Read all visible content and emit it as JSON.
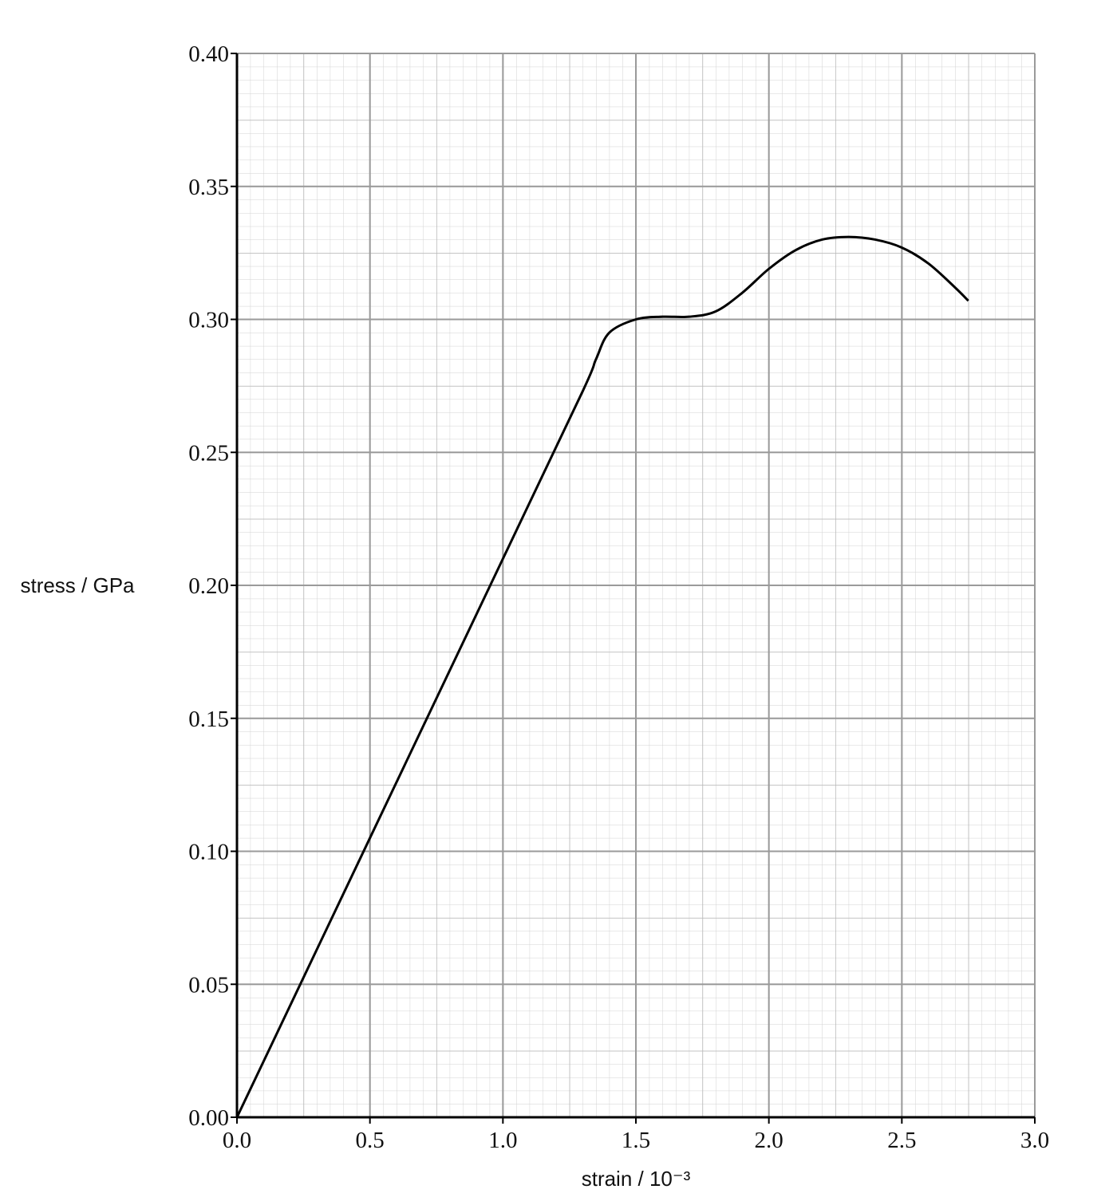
{
  "chart_data": {
    "type": "line",
    "x_label": "strain / 10⁻³",
    "y_label": "stress / GPa",
    "x": [
      0,
      0.5,
      1.0,
      1.3,
      1.35,
      1.4,
      1.5,
      1.6,
      1.7,
      1.8,
      1.9,
      2.0,
      2.1,
      2.2,
      2.3,
      2.4,
      2.5,
      2.6,
      2.7,
      2.75
    ],
    "series": [
      {
        "color": "#000000",
        "values": [
          0,
          0.105,
          0.21,
          0.273,
          0.285,
          0.295,
          0.3,
          0.301,
          0.301,
          0.303,
          0.31,
          0.319,
          0.326,
          0.33,
          0.331,
          0.33,
          0.327,
          0.321,
          0.312,
          0.307
        ]
      }
    ],
    "xlim": [
      0,
      3.0
    ],
    "ylim": [
      0,
      0.4
    ],
    "xticks": [
      {
        "value": 0,
        "label": "0.0"
      },
      0.5,
      {
        "value": 1,
        "label": "1.0"
      },
      1.5,
      {
        "value": 2,
        "label": "2.0"
      },
      2.5,
      {
        "value": 3,
        "label": "3.0"
      }
    ],
    "yticks": [
      {
        "value": 0,
        "label": "0.00"
      },
      0.05,
      {
        "value": 0.1,
        "label": "0.10"
      },
      0.15,
      {
        "value": 0.2,
        "label": "0.20"
      },
      0.25,
      {
        "value": 0.3,
        "label": "0.30"
      },
      0.35,
      {
        "value": 0.4,
        "label": "0.40"
      }
    ],
    "grid": true
  }
}
